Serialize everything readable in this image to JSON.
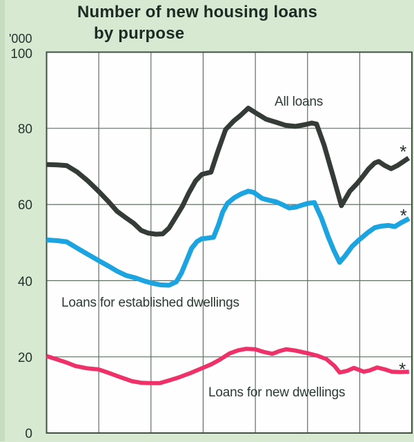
{
  "title": {
    "line1": "Number of new housing loans",
    "line2": "by purpose"
  },
  "axis": {
    "unit": "'000",
    "ticks": [
      "100",
      "80",
      "60",
      "40",
      "20",
      "0"
    ]
  },
  "labels": {
    "all_loans": "All loans",
    "established": "Loans for established dwellings",
    "new_dwellings": "Loans for new dwellings",
    "latest_marker": "*"
  },
  "colors": {
    "background": "#d8e9d2",
    "plot_background": "#fdfefd",
    "grid": "#5f6f64",
    "border": "#414d45",
    "text": "#25342c",
    "all_loans": "#353c37",
    "established": "#1ba4e0",
    "new_dwellings": "#ee3169"
  },
  "chart_data": {
    "type": "line",
    "title": "Number of new housing loans by purpose",
    "y_unit": "'000",
    "ylim": [
      0,
      100
    ],
    "y_ticks": [
      0,
      20,
      40,
      60,
      80,
      100
    ],
    "x_gridlines": 8,
    "grid": true,
    "legend_position": "inline-annotations",
    "note": "x is percent of plot width; no x-axis labels visible in image",
    "series": [
      {
        "name": "All loans",
        "color": "#353c37",
        "width": 7,
        "points": [
          [
            0.0,
            70.5
          ],
          [
            3.0,
            70.4
          ],
          [
            5.5,
            70.2
          ],
          [
            8.3,
            68.6
          ],
          [
            11.3,
            66.2
          ],
          [
            14.2,
            63.5
          ],
          [
            17.0,
            60.7
          ],
          [
            19.3,
            58.2
          ],
          [
            21.6,
            56.6
          ],
          [
            23.8,
            55.1
          ],
          [
            25.9,
            53.2
          ],
          [
            27.8,
            52.5
          ],
          [
            29.9,
            52.2
          ],
          [
            31.8,
            52.3
          ],
          [
            33.5,
            53.8
          ],
          [
            35.3,
            56.6
          ],
          [
            37.2,
            59.6
          ],
          [
            38.9,
            63.0
          ],
          [
            40.8,
            66.2
          ],
          [
            42.5,
            67.9
          ],
          [
            45.0,
            68.5
          ],
          [
            46.9,
            74.0
          ],
          [
            49.0,
            79.7
          ],
          [
            51.2,
            81.9
          ],
          [
            53.1,
            83.4
          ],
          [
            55.2,
            85.3
          ],
          [
            57.5,
            83.9
          ],
          [
            60.1,
            82.4
          ],
          [
            62.8,
            81.6
          ],
          [
            65.4,
            80.8
          ],
          [
            68.1,
            80.5
          ],
          [
            70.9,
            81.0
          ],
          [
            72.6,
            81.4
          ],
          [
            73.9,
            81.1
          ],
          [
            76.0,
            75.5
          ],
          [
            78.4,
            67.5
          ],
          [
            80.7,
            59.7
          ],
          [
            83.0,
            63.5
          ],
          [
            84.9,
            65.4
          ],
          [
            86.4,
            67.2
          ],
          [
            88.1,
            69.3
          ],
          [
            89.8,
            70.9
          ],
          [
            90.9,
            71.3
          ],
          [
            92.6,
            70.2
          ],
          [
            94.3,
            69.4
          ],
          [
            96.0,
            70.2
          ],
          [
            97.7,
            71.3
          ],
          [
            99.1,
            72.2
          ]
        ]
      },
      {
        "name": "Loans for established dwellings",
        "color": "#1ba4e0",
        "width": 7,
        "points": [
          [
            0.0,
            50.7
          ],
          [
            3.0,
            50.5
          ],
          [
            5.5,
            50.2
          ],
          [
            8.3,
            48.6
          ],
          [
            11.3,
            46.9
          ],
          [
            14.2,
            45.3
          ],
          [
            17.0,
            43.8
          ],
          [
            19.3,
            42.5
          ],
          [
            21.7,
            41.4
          ],
          [
            24.4,
            40.7
          ],
          [
            26.8,
            39.9
          ],
          [
            29.1,
            39.3
          ],
          [
            31.2,
            38.9
          ],
          [
            33.5,
            38.8
          ],
          [
            35.5,
            39.7
          ],
          [
            36.9,
            42.0
          ],
          [
            38.2,
            45.0
          ],
          [
            39.7,
            48.5
          ],
          [
            41.2,
            50.3
          ],
          [
            42.5,
            51.0
          ],
          [
            44.4,
            51.2
          ],
          [
            45.7,
            51.4
          ],
          [
            47.1,
            54.8
          ],
          [
            48.2,
            58.0
          ],
          [
            49.5,
            60.3
          ],
          [
            51.4,
            61.8
          ],
          [
            53.3,
            62.8
          ],
          [
            55.2,
            63.5
          ],
          [
            56.7,
            63.2
          ],
          [
            59.0,
            61.6
          ],
          [
            60.9,
            61.1
          ],
          [
            62.8,
            60.7
          ],
          [
            64.7,
            59.9
          ],
          [
            66.4,
            59.1
          ],
          [
            68.1,
            59.3
          ],
          [
            69.8,
            59.8
          ],
          [
            71.6,
            60.3
          ],
          [
            73.3,
            60.5
          ],
          [
            75.2,
            56.5
          ],
          [
            77.1,
            51.5
          ],
          [
            78.6,
            48.0
          ],
          [
            80.2,
            44.8
          ],
          [
            81.7,
            46.5
          ],
          [
            83.6,
            49.0
          ],
          [
            85.4,
            50.6
          ],
          [
            87.9,
            52.6
          ],
          [
            89.8,
            53.9
          ],
          [
            91.5,
            54.3
          ],
          [
            93.6,
            54.5
          ],
          [
            95.3,
            54.2
          ],
          [
            97.0,
            55.2
          ],
          [
            99.2,
            56.3
          ]
        ]
      },
      {
        "name": "Loans for new dwellings",
        "color": "#ee3169",
        "width": 6,
        "points": [
          [
            0.0,
            20.2
          ],
          [
            2.6,
            19.4
          ],
          [
            5.5,
            18.5
          ],
          [
            7.9,
            17.6
          ],
          [
            11.0,
            17.0
          ],
          [
            14.2,
            16.7
          ],
          [
            17.0,
            15.8
          ],
          [
            20.4,
            14.6
          ],
          [
            23.4,
            13.6
          ],
          [
            25.9,
            13.2
          ],
          [
            28.4,
            13.1
          ],
          [
            31.0,
            13.1
          ],
          [
            33.5,
            13.8
          ],
          [
            35.9,
            14.5
          ],
          [
            39.5,
            15.8
          ],
          [
            42.5,
            17.0
          ],
          [
            45.0,
            18.0
          ],
          [
            47.3,
            19.2
          ],
          [
            50.1,
            20.9
          ],
          [
            52.4,
            21.7
          ],
          [
            54.6,
            22.1
          ],
          [
            57.1,
            22.0
          ],
          [
            59.4,
            21.3
          ],
          [
            61.8,
            20.8
          ],
          [
            63.7,
            21.5
          ],
          [
            65.6,
            22.0
          ],
          [
            68.4,
            21.6
          ],
          [
            71.6,
            20.9
          ],
          [
            74.1,
            20.3
          ],
          [
            76.6,
            19.4
          ],
          [
            78.8,
            17.6
          ],
          [
            80.2,
            15.9
          ],
          [
            82.2,
            16.3
          ],
          [
            84.1,
            17.1
          ],
          [
            86.8,
            16.1
          ],
          [
            88.3,
            16.4
          ],
          [
            90.5,
            17.2
          ],
          [
            92.6,
            16.7
          ],
          [
            94.5,
            16.1
          ],
          [
            96.8,
            16.0
          ],
          [
            99.2,
            16.1
          ]
        ]
      }
    ],
    "latest_markers": [
      {
        "series": "All loans",
        "x": 97.6,
        "y": 74.8
      },
      {
        "series": "Loans for established dwellings",
        "x": 97.7,
        "y": 58.0
      },
      {
        "series": "Loans for new dwellings",
        "x": 97.4,
        "y": 17.7
      }
    ]
  }
}
